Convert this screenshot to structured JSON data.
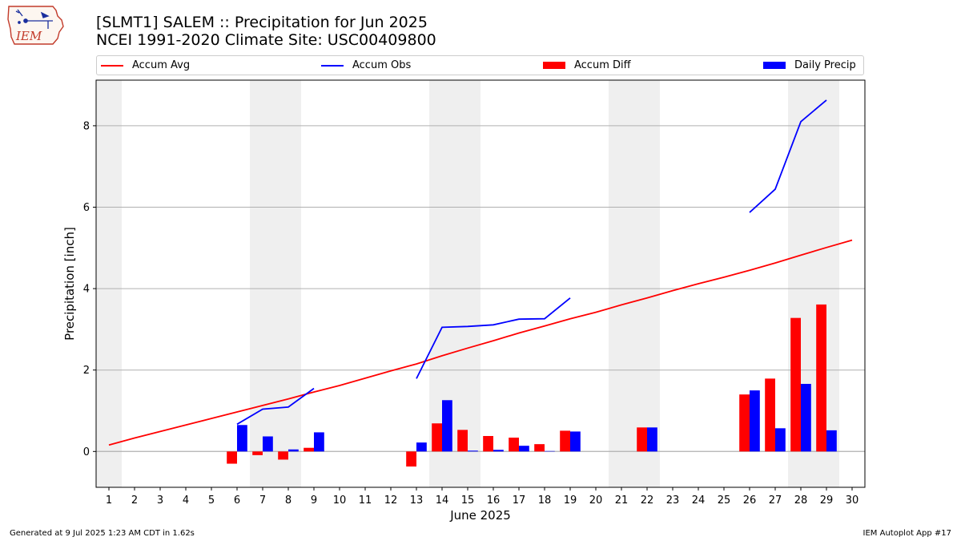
{
  "header": {
    "title_line1": "[SLMT1] SALEM :: Precipitation for Jun 2025",
    "title_line2": "NCEI 1991-2020 Climate Site: USC00409800"
  },
  "logo": {
    "text": "IEM",
    "icon": "iowa-state-weather-logo-icon"
  },
  "legend": {
    "items": [
      {
        "label": "Accum Avg",
        "kind": "line",
        "color": "#ff0000"
      },
      {
        "label": "Accum Obs",
        "kind": "line",
        "color": "#0000ff"
      },
      {
        "label": "Accum Diff",
        "kind": "patch",
        "color": "#ff0000"
      },
      {
        "label": "Daily Precip",
        "kind": "patch",
        "color": "#0000ff"
      }
    ]
  },
  "footer": {
    "generated": "Generated at 9 Jul 2025 1:23 AM CDT in 1.62s",
    "app": "IEM Autoplot App #17"
  },
  "chart_data": {
    "type": "bar",
    "xlabel": "June 2025",
    "ylabel": "Precipitation [inch]",
    "x": [
      1,
      2,
      3,
      4,
      5,
      6,
      7,
      8,
      9,
      10,
      11,
      12,
      13,
      14,
      15,
      16,
      17,
      18,
      19,
      20,
      21,
      22,
      23,
      24,
      25,
      26,
      27,
      28,
      29,
      30
    ],
    "xlim": [
      0.5,
      30.5
    ],
    "ylim": [
      -0.88,
      9.12
    ],
    "yticks": [
      0,
      2,
      4,
      6,
      8
    ],
    "grid": "y",
    "legend_position": "top",
    "weekend_shading": [
      [
        0.5,
        1.5
      ],
      [
        6.5,
        8.5
      ],
      [
        13.5,
        15.5
      ],
      [
        20.5,
        22.5
      ],
      [
        27.5,
        29.5
      ]
    ],
    "shade_color": "#efefef",
    "series": [
      {
        "name": "Accum Avg",
        "kind": "line",
        "color": "#ff0000",
        "x": [
          1,
          2,
          3,
          4,
          5,
          6,
          7,
          8,
          9,
          10,
          11,
          12,
          13,
          14,
          15,
          16,
          17,
          18,
          19,
          20,
          21,
          22,
          23,
          24,
          25,
          26,
          27,
          28,
          29,
          30
        ],
        "values": [
          0.16,
          0.33,
          0.49,
          0.65,
          0.81,
          0.97,
          1.13,
          1.29,
          1.46,
          1.62,
          1.8,
          1.98,
          2.15,
          2.35,
          2.54,
          2.72,
          2.91,
          3.08,
          3.26,
          3.42,
          3.6,
          3.77,
          3.95,
          4.12,
          4.28,
          4.45,
          4.63,
          4.82,
          5.01,
          5.19
        ]
      },
      {
        "name": "Accum Obs",
        "kind": "line",
        "color": "#0000ff",
        "segments": [
          {
            "x": [
              6,
              7,
              8,
              9
            ],
            "values": [
              0.67,
              1.04,
              1.09,
              1.55
            ]
          },
          {
            "x": [
              13,
              14,
              15,
              16,
              17,
              18,
              19
            ],
            "values": [
              1.79,
              3.05,
              3.07,
              3.11,
              3.25,
              3.26,
              3.77
            ]
          },
          {
            "x": [
              26,
              27,
              28,
              29
            ],
            "values": [
              5.87,
              6.44,
              8.1,
              8.63
            ]
          }
        ]
      },
      {
        "name": "Accum Diff",
        "kind": "bar",
        "color": "#ff0000",
        "x": [
          6,
          7,
          8,
          9,
          13,
          14,
          15,
          16,
          17,
          18,
          19,
          22,
          26,
          27,
          28,
          29
        ],
        "values": [
          -0.3,
          -0.09,
          -0.2,
          0.09,
          -0.37,
          0.69,
          0.53,
          0.38,
          0.34,
          0.18,
          0.51,
          0.59,
          1.4,
          1.79,
          3.28,
          3.61
        ]
      },
      {
        "name": "Daily Precip",
        "kind": "bar",
        "color": "#0000ff",
        "x": [
          6,
          7,
          8,
          9,
          13,
          14,
          15,
          16,
          17,
          18,
          19,
          22,
          26,
          27,
          28,
          29
        ],
        "values": [
          0.65,
          0.37,
          0.05,
          0.47,
          0.22,
          1.26,
          0.02,
          0.04,
          0.14,
          0.01,
          0.49,
          0.59,
          1.5,
          0.57,
          1.66,
          0.52
        ]
      }
    ]
  }
}
